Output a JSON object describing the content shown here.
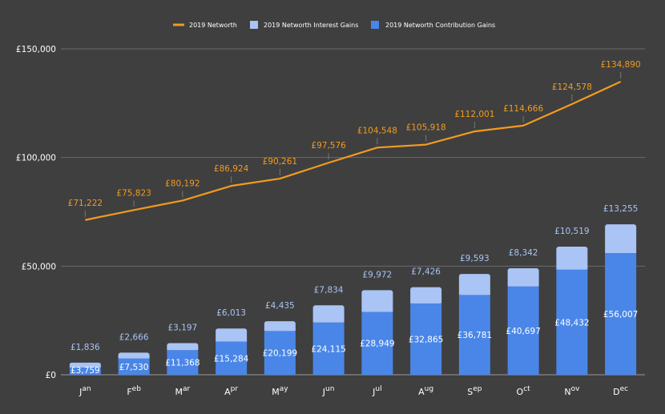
{
  "chart_data": {
    "type": "bar",
    "categories": [
      "Jan",
      "Feb",
      "Mar",
      "Apr",
      "May",
      "Jun",
      "Jul",
      "Aug",
      "Sep",
      "Oct",
      "Nov",
      "Dec"
    ],
    "series": [
      {
        "name": "2019 Networth",
        "type": "line",
        "color": "#f29b1f",
        "values": [
          71222,
          75823,
          80192,
          86924,
          90261,
          97576,
          104548,
          105918,
          112001,
          114666,
          124578,
          134890
        ],
        "labels": [
          "£71,222",
          "£75,823",
          "£80,192",
          "£86,924",
          "£90,261",
          "£97,576",
          "£104,548",
          "£105,918",
          "£112,001",
          "£114,666",
          "£124,578",
          "£134,890"
        ]
      },
      {
        "name": "2019 Networth Interest Gains",
        "type": "bar-stacked",
        "color": "#a9c4f5",
        "values": [
          1836,
          2666,
          3197,
          6013,
          4435,
          7834,
          9972,
          7426,
          9593,
          8342,
          10519,
          13255
        ],
        "labels": [
          "£1,836",
          "£2,666",
          "£3,197",
          "£6,013",
          "£4,435",
          "£7,834",
          "£9,972",
          "£7,426",
          "£9,593",
          "£8,342",
          "£10,519",
          "£13,255"
        ]
      },
      {
        "name": "2019 Networth Contribution Gains",
        "type": "bar-stacked",
        "color": "#4a86e8",
        "values": [
          3759,
          7530,
          11368,
          15284,
          20199,
          24115,
          28949,
          32865,
          36781,
          40697,
          48432,
          56007
        ],
        "labels": [
          "£3,759",
          "£7,530",
          "£11,368",
          "£15,284",
          "£20,199",
          "£24,115",
          "£28,949",
          "£32,865",
          "£36,781",
          "£40,697",
          "£48,432",
          "£56,007"
        ]
      }
    ],
    "ylim": [
      0,
      150000
    ],
    "yticks": [
      0,
      50000,
      100000,
      150000
    ],
    "ytick_labels": [
      "£0",
      "£50,000",
      "£100,000",
      "£150,000"
    ],
    "legend_position": "top-center",
    "grid": true,
    "colors": {
      "background": "#3f3f3f",
      "grid": "#6b6b6b",
      "axis_text": "#ffffff",
      "line_label": "#f29b1f",
      "interest_label": "#a9c4f5",
      "contribution_label": "#ffffff"
    }
  }
}
